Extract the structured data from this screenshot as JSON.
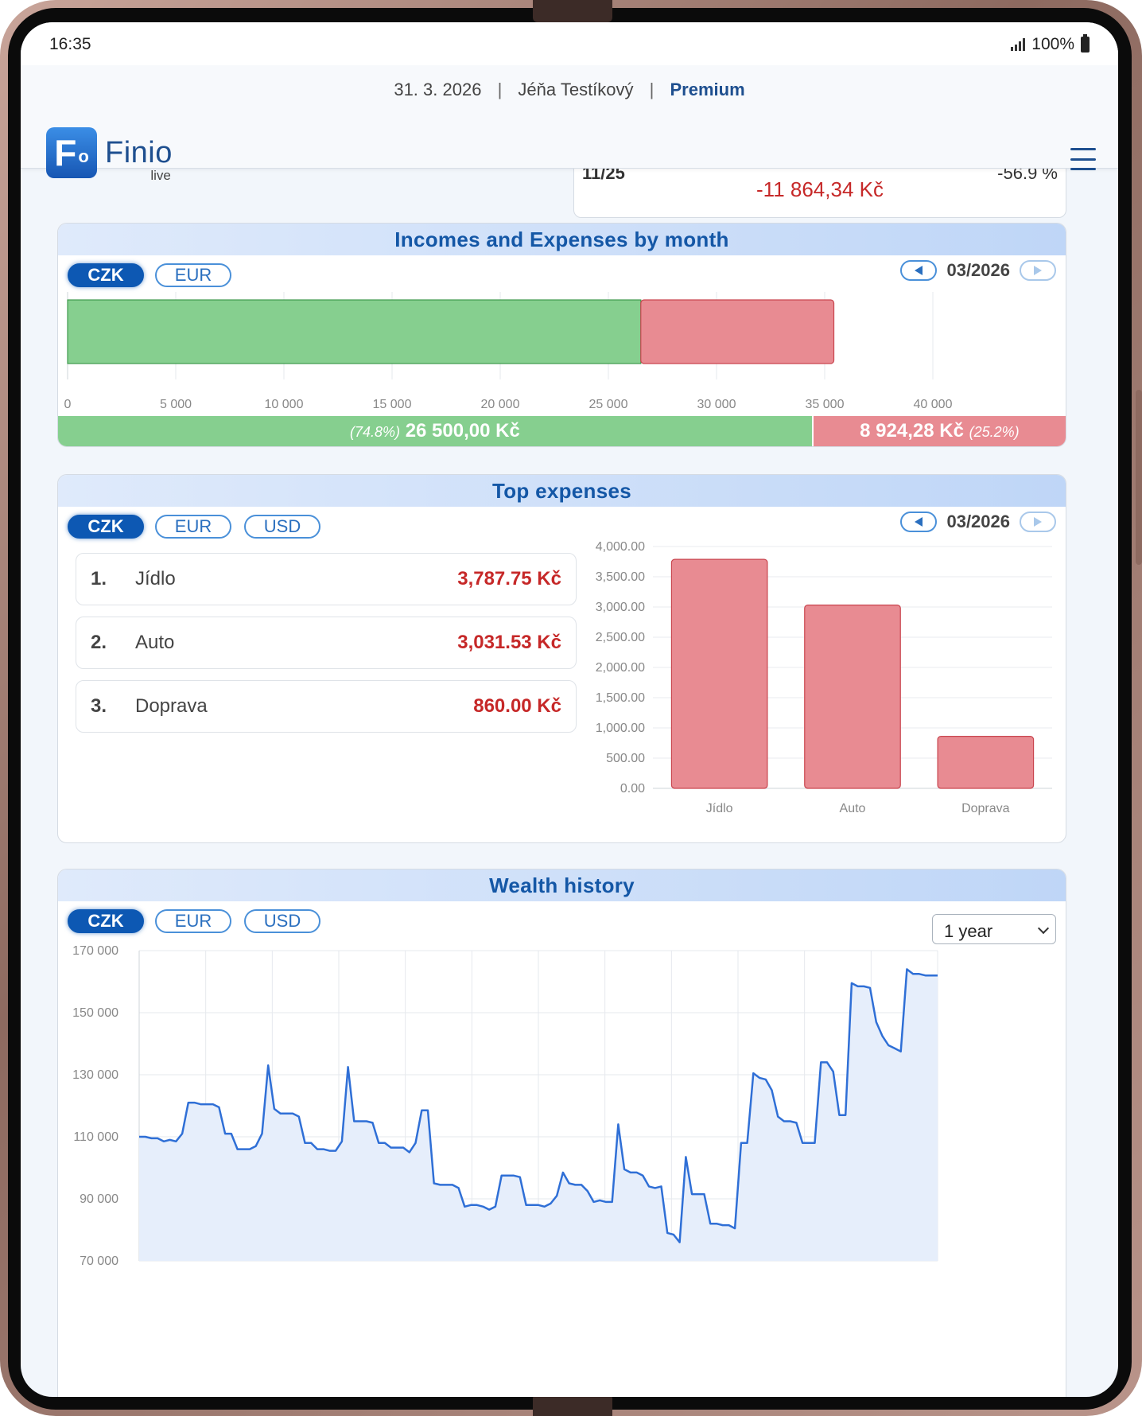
{
  "status": {
    "time": "16:35",
    "battery": "100%"
  },
  "header": {
    "date": "31. 3. 2026",
    "user": "Jéňa Testíkový",
    "plan": "Premium",
    "logo_name": "Finio",
    "logo_sub": "live",
    "separator": "|"
  },
  "prev_card": {
    "month": "11/25",
    "value": "-11 864,34 Kč",
    "percent": "-56.9 %"
  },
  "income_expense": {
    "title": "Incomes and Expenses by month",
    "currencies": [
      "CZK",
      "EUR"
    ],
    "active_currency": "CZK",
    "month": "03/2026",
    "income_pct": "(74.8%)",
    "income_value": "26 500,00 Kč",
    "expense_value": "8 924,28 Kč",
    "expense_pct": "(25.2%)"
  },
  "top_expenses": {
    "title": "Top expenses",
    "currencies": [
      "CZK",
      "EUR",
      "USD"
    ],
    "active_currency": "CZK",
    "month": "03/2026",
    "items": [
      {
        "rank": "1.",
        "name": "Jídlo",
        "value": "3,787.75 Kč"
      },
      {
        "rank": "2.",
        "name": "Auto",
        "value": "3,031.53 Kč"
      },
      {
        "rank": "3.",
        "name": "Doprava",
        "value": "860.00 Kč"
      }
    ]
  },
  "wealth": {
    "title": "Wealth history",
    "currencies": [
      "CZK",
      "EUR",
      "USD"
    ],
    "active_currency": "CZK",
    "period": "1 year"
  },
  "colors": {
    "income": "#86cf8f",
    "expense": "#e88b92",
    "primary": "#0d58b3",
    "line": "#2f6fd6"
  },
  "chart_data": [
    {
      "type": "bar",
      "orientation": "horizontal",
      "stacked": true,
      "categories": [
        "03/2026"
      ],
      "series": [
        {
          "values": [
            26500
          ],
          "color": "#86cf8f"
        },
        {
          "values": [
            8924.28
          ],
          "color": "#e88b92"
        }
      ],
      "xlim": [
        0,
        40000
      ],
      "xticks": [
        "0",
        "5 000",
        "10 000",
        "15 000",
        "20 000",
        "25 000",
        "30 000",
        "35 000",
        "40 000"
      ],
      "grid": true
    },
    {
      "type": "bar",
      "categories": [
        "Jídlo",
        "Auto",
        "Doprava"
      ],
      "values": [
        3787.75,
        3031.53,
        860.0
      ],
      "ylim": [
        0,
        4000
      ],
      "yticks": [
        "4,000.00",
        "3,500.00",
        "3,000.00",
        "2,500.00",
        "2,000.00",
        "1,500.00",
        "1,000.00",
        "500.00",
        "0.00"
      ],
      "grid": true
    },
    {
      "type": "area",
      "ylim": [
        70000,
        170000
      ],
      "yticks": [
        "170 000",
        "150 000",
        "130 000",
        "110 000",
        "90 000",
        "70 000"
      ],
      "grid": true,
      "values": [
        110000,
        110000,
        109500,
        109500,
        108500,
        109000,
        108500,
        111000,
        121000,
        121000,
        120500,
        120500,
        120500,
        119500,
        111000,
        111000,
        106000,
        106000,
        106000,
        107000,
        111000,
        133000,
        119000,
        117500,
        117500,
        117500,
        116500,
        108000,
        108000,
        106000,
        106000,
        105500,
        105500,
        108500,
        132500,
        115000,
        115000,
        115000,
        114500,
        108000,
        108000,
        106500,
        106500,
        106500,
        105000,
        108000,
        118500,
        118500,
        95000,
        94500,
        94500,
        94500,
        93500,
        87500,
        88000,
        88000,
        87500,
        86500,
        87500,
        97500,
        97500,
        97500,
        97000,
        88000,
        88000,
        88000,
        87500,
        88500,
        91000,
        98500,
        95000,
        94500,
        94500,
        92500,
        89000,
        89500,
        89000,
        89000,
        114000,
        99500,
        98500,
        98500,
        97500,
        94000,
        93500,
        94000,
        79000,
        78500,
        76000,
        103500,
        91500,
        91500,
        91500,
        82000,
        82000,
        81500,
        81500,
        80500,
        108000,
        108000,
        130500,
        129000,
        128500,
        125000,
        116500,
        115000,
        115000,
        114500,
        108000,
        108000,
        108000,
        134000,
        134000,
        131000,
        117000,
        117000,
        159500,
        158500,
        158500,
        158000,
        147000,
        142500,
        139500,
        138500,
        137500,
        164000,
        162500,
        162500,
        162000,
        162000,
        162000
      ]
    }
  ]
}
